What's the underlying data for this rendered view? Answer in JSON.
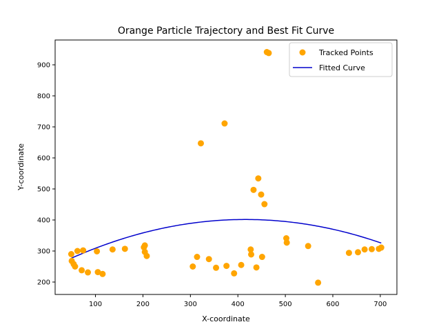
{
  "chart_data": {
    "type": "scatter",
    "title": "Orange Particle Trajectory and Best Fit Curve",
    "xlabel": "X-coordinate",
    "ylabel": "Y-coordinate",
    "xlim": [
      15,
      735
    ],
    "ylim": [
      160,
      980
    ],
    "xticks": [
      100,
      200,
      300,
      400,
      500,
      600,
      700
    ],
    "yticks": [
      200,
      300,
      400,
      500,
      600,
      700,
      800,
      900
    ],
    "grid": false,
    "legend_position": "top-right",
    "series": [
      {
        "name": "Tracked Points",
        "kind": "scatter",
        "color": "#FFA500",
        "points": [
          [
            49,
            290
          ],
          [
            50,
            268
          ],
          [
            54,
            258
          ],
          [
            57,
            250
          ],
          [
            62,
            300
          ],
          [
            71,
            238
          ],
          [
            74,
            302
          ],
          [
            84,
            231
          ],
          [
            103,
            299
          ],
          [
            105,
            232
          ],
          [
            115,
            226
          ],
          [
            136,
            305
          ],
          [
            162,
            307
          ],
          [
            202,
            312
          ],
          [
            204,
            318
          ],
          [
            204,
            297
          ],
          [
            208,
            284
          ],
          [
            305,
            250
          ],
          [
            314,
            281
          ],
          [
            322,
            647
          ],
          [
            339,
            274
          ],
          [
            354,
            246
          ],
          [
            372,
            711
          ],
          [
            376,
            252
          ],
          [
            392,
            228
          ],
          [
            407,
            255
          ],
          [
            427,
            305
          ],
          [
            428,
            289
          ],
          [
            433,
            497
          ],
          [
            439,
            247
          ],
          [
            443,
            534
          ],
          [
            449,
            482
          ],
          [
            451,
            281
          ],
          [
            456,
            451
          ],
          [
            461,
            941
          ],
          [
            465,
            938
          ],
          [
            502,
            341
          ],
          [
            503,
            327
          ],
          [
            548,
            316
          ],
          [
            569,
            198
          ],
          [
            634,
            294
          ],
          [
            653,
            296
          ],
          [
            667,
            305
          ],
          [
            682,
            306
          ],
          [
            697,
            307
          ],
          [
            702,
            311
          ]
        ]
      },
      {
        "name": "Fitted Curve",
        "kind": "line",
        "color": "#0000CC",
        "quadratic": {
          "a": -0.000928,
          "b": 0.772,
          "c": 241,
          "x_from": 49,
          "x_to": 702
        }
      }
    ]
  }
}
